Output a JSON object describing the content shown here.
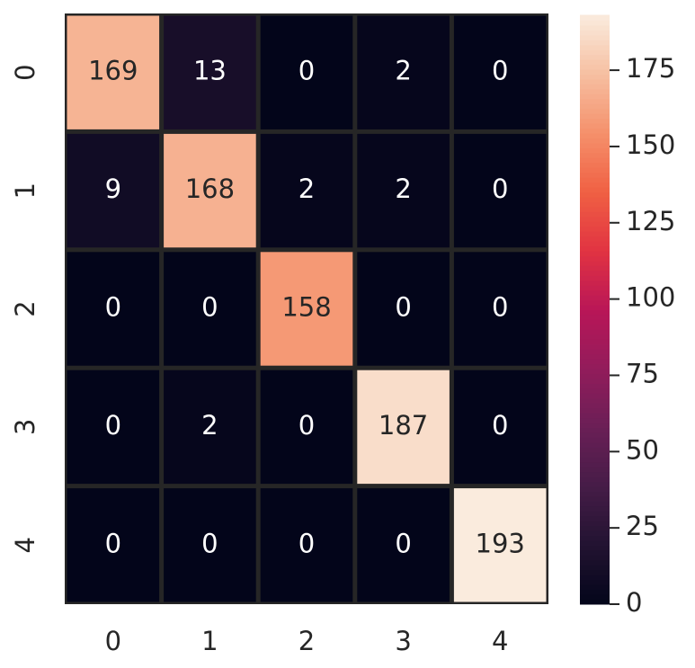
{
  "chart_data": {
    "type": "heatmap",
    "x_categories": [
      "0",
      "1",
      "2",
      "3",
      "4"
    ],
    "y_categories": [
      "0",
      "1",
      "2",
      "3",
      "4"
    ],
    "z": [
      [
        169,
        13,
        0,
        2,
        0
      ],
      [
        9,
        168,
        2,
        2,
        0
      ],
      [
        0,
        0,
        158,
        0,
        0
      ],
      [
        0,
        2,
        0,
        187,
        0
      ],
      [
        0,
        0,
        0,
        0,
        193
      ]
    ],
    "colormap": "rocket",
    "colorbar": {
      "lim": [
        0,
        193
      ],
      "ticks": [
        0,
        25,
        50,
        75,
        100,
        125,
        150,
        175
      ]
    }
  }
}
